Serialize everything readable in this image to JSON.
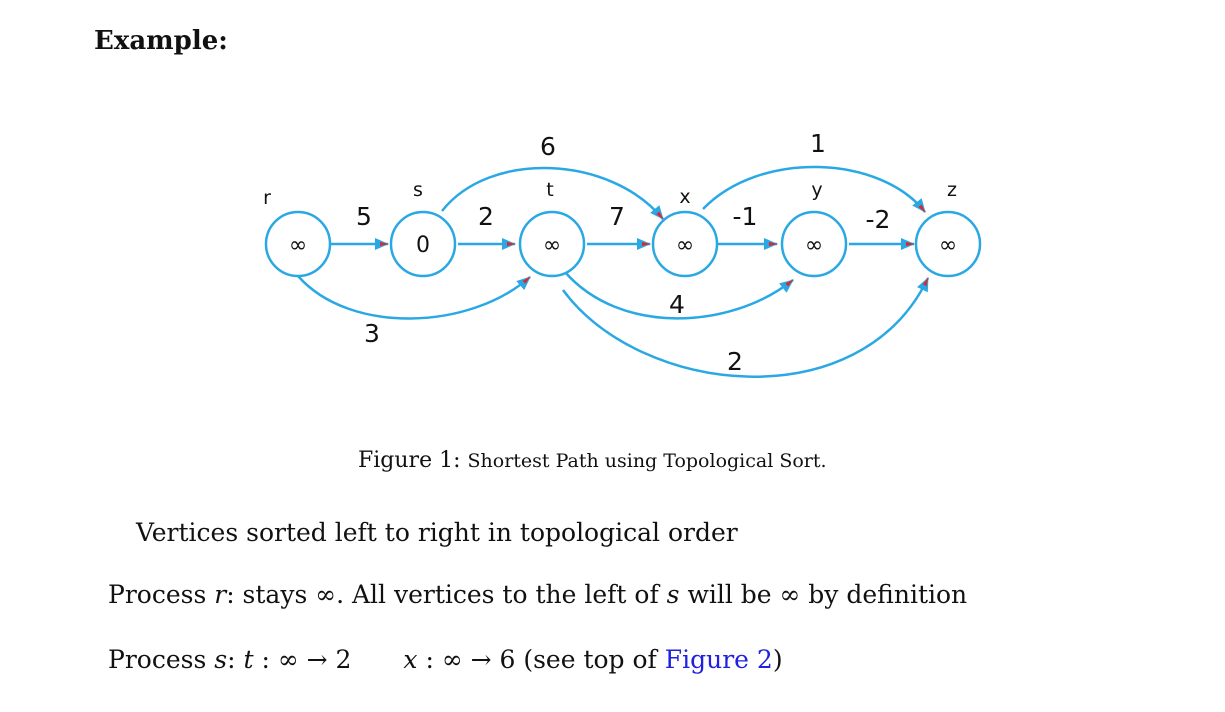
{
  "heading": "Example:",
  "graph": {
    "colors": {
      "edge": "#2aa8e3",
      "arrow_tip": "#e0262b",
      "node_stroke": "#2aa8e3",
      "text": "#111111"
    },
    "vertices": [
      {
        "id": "r",
        "label": "r",
        "value": "∞"
      },
      {
        "id": "s",
        "label": "s",
        "value": "0"
      },
      {
        "id": "t",
        "label": "t",
        "value": "∞"
      },
      {
        "id": "x",
        "label": "x",
        "value": "∞"
      },
      {
        "id": "y",
        "label": "y",
        "value": "∞"
      },
      {
        "id": "z",
        "label": "z",
        "value": "∞"
      }
    ],
    "edges": [
      {
        "from": "r",
        "to": "s",
        "weight": "5"
      },
      {
        "from": "s",
        "to": "t",
        "weight": "2"
      },
      {
        "from": "t",
        "to": "x",
        "weight": "7"
      },
      {
        "from": "x",
        "to": "y",
        "weight": "-1"
      },
      {
        "from": "y",
        "to": "z",
        "weight": "-2"
      },
      {
        "from": "s",
        "to": "x",
        "weight": "6"
      },
      {
        "from": "x",
        "to": "z",
        "weight": "1"
      },
      {
        "from": "r",
        "to": "t",
        "weight": "3"
      },
      {
        "from": "t",
        "to": "y",
        "weight": "4"
      },
      {
        "from": "t",
        "to": "z",
        "weight": "2"
      }
    ]
  },
  "caption": {
    "label": "Figure 1:",
    "text": "Shortest Path using Topological Sort."
  },
  "lines": {
    "line1": "Vertices sorted left to right in topological order",
    "line2": {
      "p1": "Process ",
      "v1": "r",
      "p2": ": stays ∞. All vertices to the left of ",
      "v2": "s",
      "p3": " will be ∞ by definition"
    },
    "line3": {
      "p1": "Process ",
      "v1": "s",
      "p2": ": ",
      "expr1_var": "t",
      "expr1_rest": " : ∞ → 2",
      "expr2_var": "x",
      "expr2_rest": " : ∞ → 6",
      "p3": " (see top of ",
      "link": "Figure  2",
      "p4": ")"
    }
  }
}
